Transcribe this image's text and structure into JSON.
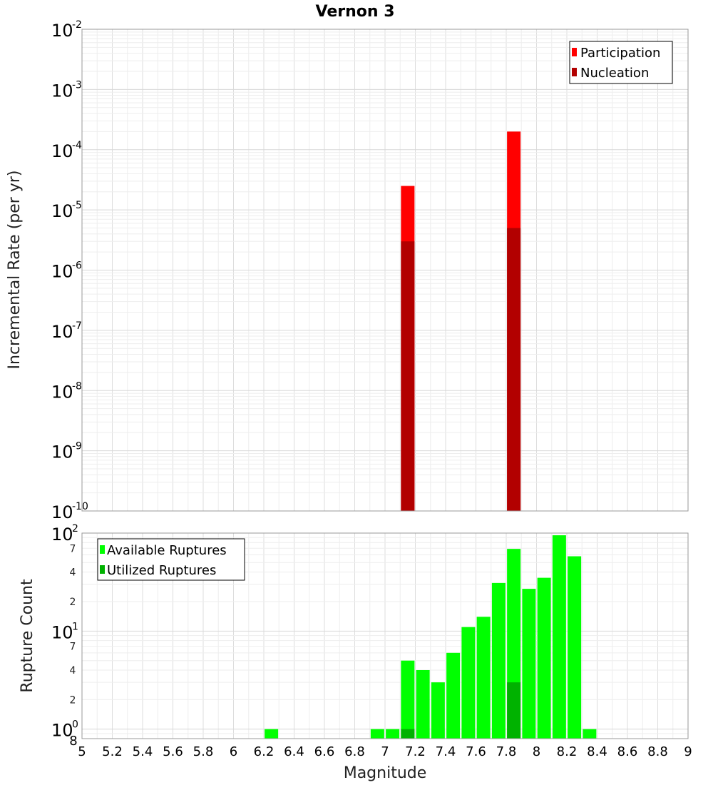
{
  "chart_data": [
    {
      "type": "bar",
      "title": "Vernon 3",
      "ylabel": "Incremental Rate (per yr)",
      "xlabel": "",
      "xlim": [
        5,
        9
      ],
      "ylim": [
        1e-10,
        0.01
      ],
      "yscale": "log",
      "grid": true,
      "legend": "top-right",
      "series": [
        {
          "name": "Participation",
          "color": "#ff0000",
          "points": [
            {
              "x": 7.15,
              "y": 2.5e-05
            },
            {
              "x": 7.85,
              "y": 0.0002
            }
          ]
        },
        {
          "name": "Nucleation",
          "color": "#b20000",
          "points": [
            {
              "x": 7.15,
              "y": 3e-06
            },
            {
              "x": 7.85,
              "y": 5e-06
            }
          ]
        }
      ]
    },
    {
      "type": "bar",
      "title": "",
      "ylabel": "Rupture Count",
      "xlabel": "Magnitude",
      "xlim": [
        5,
        9
      ],
      "ylim": [
        0.8,
        100
      ],
      "yscale": "log",
      "grid": true,
      "legend": "top-left",
      "series": [
        {
          "name": "Available Ruptures",
          "color": "#00ff00",
          "points": [
            {
              "x": 6.25,
              "y": 1
            },
            {
              "x": 6.95,
              "y": 1
            },
            {
              "x": 7.05,
              "y": 1
            },
            {
              "x": 7.15,
              "y": 5
            },
            {
              "x": 7.25,
              "y": 4
            },
            {
              "x": 7.35,
              "y": 3
            },
            {
              "x": 7.45,
              "y": 6
            },
            {
              "x": 7.55,
              "y": 11
            },
            {
              "x": 7.65,
              "y": 14
            },
            {
              "x": 7.75,
              "y": 31
            },
            {
              "x": 7.85,
              "y": 69
            },
            {
              "x": 7.95,
              "y": 27
            },
            {
              "x": 8.05,
              "y": 35
            },
            {
              "x": 8.15,
              "y": 95
            },
            {
              "x": 8.25,
              "y": 58
            },
            {
              "x": 8.35,
              "y": 1
            }
          ]
        },
        {
          "name": "Utilized Ruptures",
          "color": "#00b200",
          "points": [
            {
              "x": 7.15,
              "y": 1
            },
            {
              "x": 7.85,
              "y": 3
            }
          ]
        }
      ]
    }
  ],
  "axes": {
    "x_ticks": [
      "5",
      "5.2",
      "5.4",
      "5.6",
      "5.8",
      "6",
      "6.2",
      "6.4",
      "6.6",
      "6.8",
      "7",
      "7.2",
      "7.4",
      "7.6",
      "7.8",
      "8",
      "8.2",
      "8.4",
      "8.6",
      "8.8",
      "9"
    ],
    "top_y_ticks": [
      {
        "base": "10",
        "exp": "-2"
      },
      {
        "base": "10",
        "exp": "-3"
      },
      {
        "base": "10",
        "exp": "-4"
      },
      {
        "base": "10",
        "exp": "-5"
      },
      {
        "base": "10",
        "exp": "-6"
      },
      {
        "base": "10",
        "exp": "-7"
      },
      {
        "base": "10",
        "exp": "-8"
      },
      {
        "base": "10",
        "exp": "-9"
      },
      {
        "base": "10",
        "exp": "-10"
      }
    ],
    "bottom_y_major": [
      {
        "base": "10",
        "exp": "2",
        "v": 100
      },
      {
        "base": "10",
        "exp": "1",
        "v": 10
      },
      {
        "base": "10",
        "exp": "0",
        "v": 1
      }
    ],
    "bottom_y_minor": [
      {
        "label": "7",
        "v": 70
      },
      {
        "label": "4",
        "v": 40
      },
      {
        "label": "2",
        "v": 20
      },
      {
        "label": "7",
        "v": 7
      },
      {
        "label": "4",
        "v": 4
      },
      {
        "label": "2",
        "v": 2
      },
      {
        "label": "8",
        "v": 0.8
      }
    ]
  }
}
